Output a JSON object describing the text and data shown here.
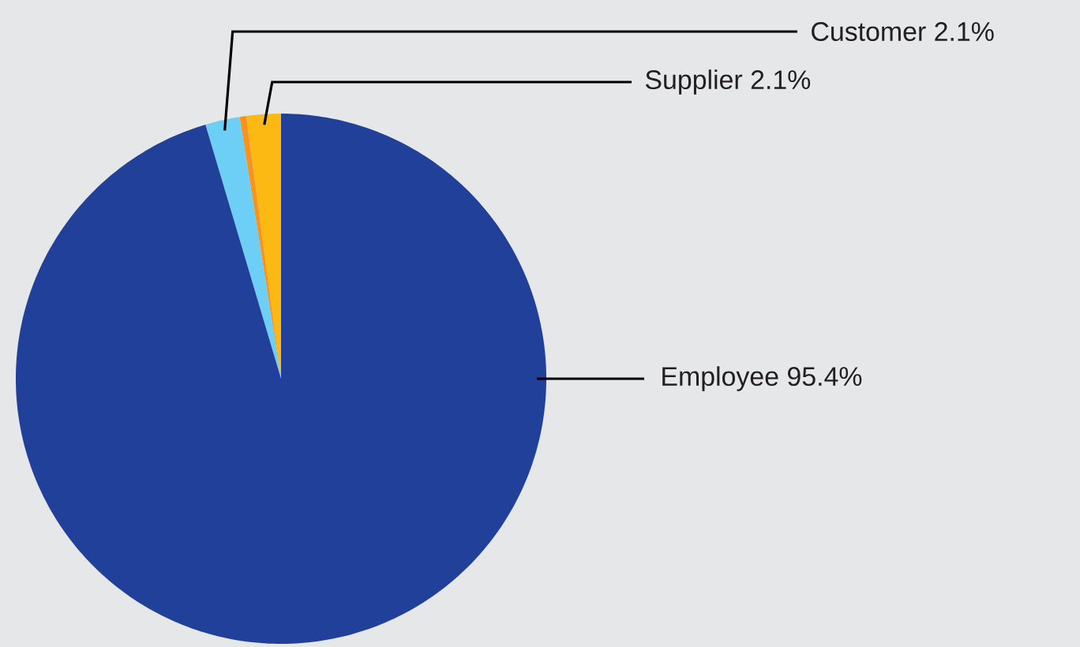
{
  "chart_data": {
    "type": "pie",
    "categories": [
      "Supplier",
      null,
      "Customer",
      "Employee"
    ],
    "values": [
      2.1,
      0.4,
      2.1,
      95.4
    ],
    "colors": [
      "#fdb913",
      "#f7941d",
      "#6dcff6",
      "#21409a"
    ],
    "value_labels": [
      "2.1%",
      null,
      "2.1%",
      "95.4%"
    ]
  }
}
